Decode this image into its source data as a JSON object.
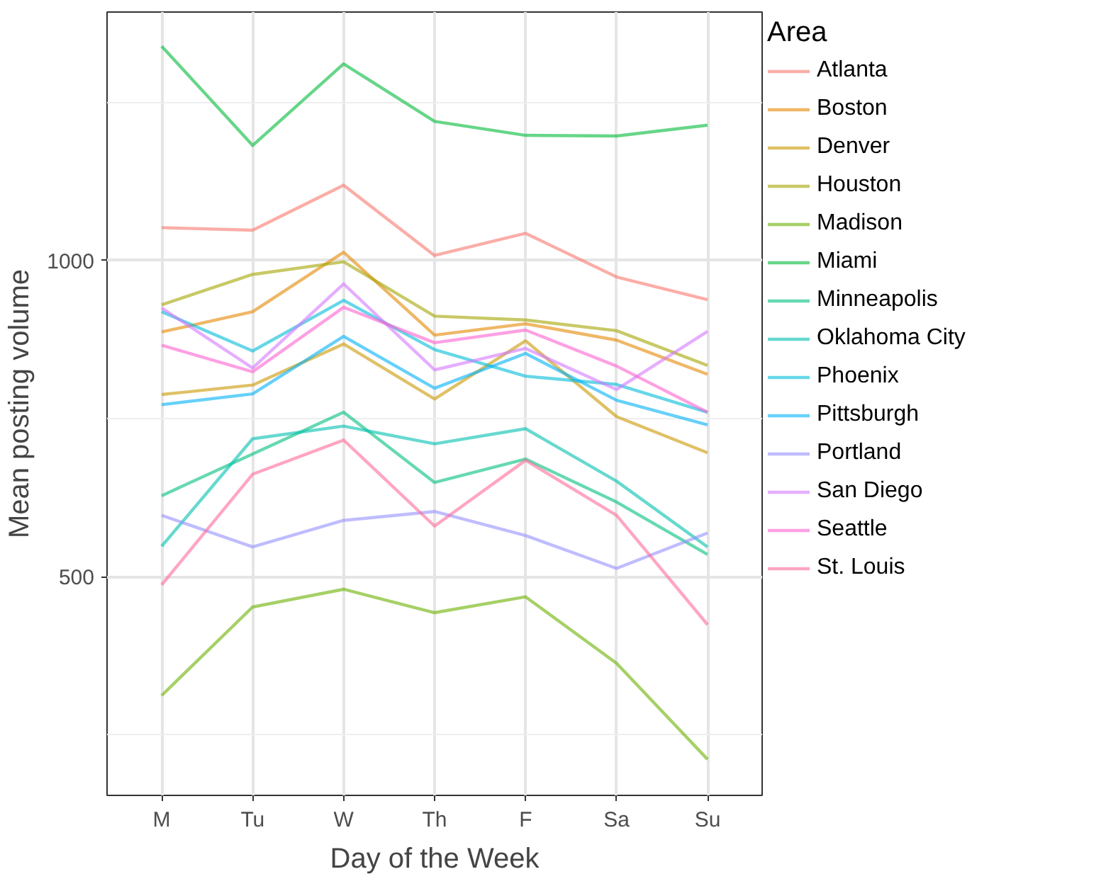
{
  "chart_data": {
    "type": "line",
    "xlabel": "Day of the Week",
    "ylabel": "Mean posting volume",
    "legend_title": "Area",
    "legend": "right",
    "grid": true,
    "categories": [
      "M",
      "Tu",
      "W",
      "Th",
      "F",
      "Sa",
      "Su"
    ],
    "ylim": [
      154,
      1393
    ],
    "yticks": [
      500,
      1000
    ],
    "series": [
      {
        "name": "Atlanta",
        "color": "#f8766d",
        "values": [
          1052,
          1048,
          1119,
          1008,
          1043,
          974,
          938
        ]
      },
      {
        "name": "Boston",
        "color": "#e58700",
        "values": [
          887,
          919,
          1013,
          882,
          900,
          874,
          820
        ]
      },
      {
        "name": "Denver",
        "color": "#c99800",
        "values": [
          788,
          803,
          868,
          781,
          873,
          753,
          696
        ]
      },
      {
        "name": "Houston",
        "color": "#a3a500",
        "values": [
          930,
          978,
          998,
          912,
          906,
          889,
          834
        ]
      },
      {
        "name": "Madison",
        "color": "#6bb100",
        "values": [
          312,
          452,
          480,
          443,
          468,
          363,
          211
        ]
      },
      {
        "name": "Miami",
        "color": "#00ba38",
        "values": [
          1339,
          1182,
          1311,
          1220,
          1198,
          1197,
          1214
        ]
      },
      {
        "name": "Minneapolis",
        "color": "#00bf7d",
        "values": [
          628,
          694,
          760,
          649,
          686,
          618,
          535
        ]
      },
      {
        "name": "Oklahoma City",
        "color": "#00c0af",
        "values": [
          548,
          718,
          738,
          710,
          734,
          651,
          547
        ]
      },
      {
        "name": "Phoenix",
        "color": "#00bcd8",
        "values": [
          919,
          857,
          937,
          859,
          817,
          804,
          760
        ]
      },
      {
        "name": "Pittsburgh",
        "color": "#00b0f6",
        "values": [
          772,
          789,
          880,
          798,
          853,
          779,
          740
        ]
      },
      {
        "name": "Portland",
        "color": "#9590ff",
        "values": [
          597,
          547,
          589,
          603,
          565,
          513,
          569
        ]
      },
      {
        "name": "San Diego",
        "color": "#d376ff",
        "values": [
          925,
          830,
          963,
          827,
          861,
          796,
          888
        ]
      },
      {
        "name": "Seattle",
        "color": "#fd61d1",
        "values": [
          866,
          824,
          926,
          870,
          890,
          833,
          760
        ]
      },
      {
        "name": "St. Louis",
        "color": "#ff6a98",
        "values": [
          487,
          662,
          716,
          580,
          684,
          597,
          424
        ]
      }
    ]
  }
}
